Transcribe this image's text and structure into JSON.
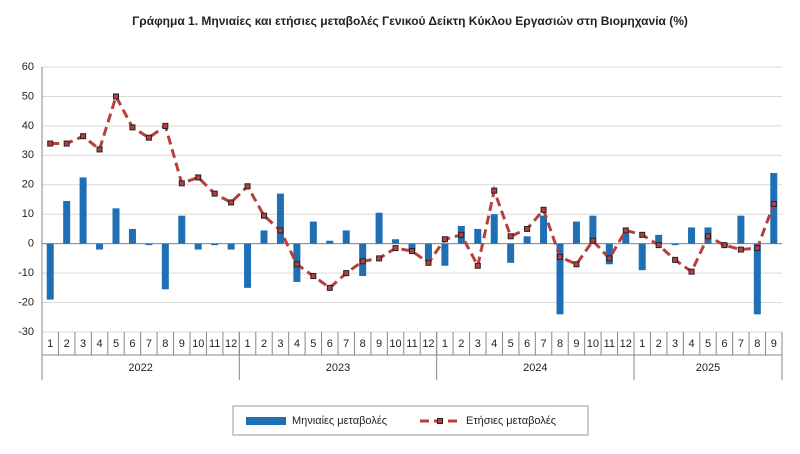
{
  "chart_data": {
    "type": "bar",
    "title": "Γράφημα 1. Μηνιαίες και ετήσιες μεταβολές  Γενικού Δείκτη Κύκλου Εργασιών στη Βιομηχανία (%)",
    "categories": [
      "1",
      "2",
      "3",
      "4",
      "5",
      "6",
      "7",
      "8",
      "9",
      "10",
      "11",
      "12",
      "1",
      "2",
      "3",
      "4",
      "5",
      "6",
      "7",
      "8",
      "9",
      "10",
      "11",
      "12",
      "1",
      "2",
      "3",
      "4",
      "5",
      "6",
      "7",
      "8",
      "9",
      "10",
      "11",
      "12",
      "1",
      "2",
      "3",
      "4",
      "5",
      "6",
      "7",
      "8",
      "9"
    ],
    "year_labels": [
      "2022",
      "2023",
      "2024",
      "2025"
    ],
    "series": [
      {
        "name": "Μηνιαίες μεταβολές",
        "type": "bar",
        "color": "#1f6fb4",
        "values": [
          -19,
          14.5,
          22.5,
          -2,
          12,
          5,
          -0.5,
          -15.5,
          9.5,
          -2,
          -0.5,
          -2,
          -15,
          4.5,
          17,
          -13,
          7.5,
          1,
          4.5,
          -11,
          10.5,
          1.5,
          -2.5,
          -6,
          -7.5,
          6,
          5,
          10,
          -6.5,
          2.5,
          9.5,
          -24,
          7.5,
          9.5,
          -7,
          3.5,
          -9,
          3,
          -0.5,
          5.5,
          5.5,
          -1,
          9.5,
          -24,
          24
        ]
      },
      {
        "name": "Ετήσιες μεταβολές",
        "type": "line",
        "color": "#b5403d",
        "values": [
          34,
          34,
          36.5,
          32,
          50,
          39.5,
          36,
          40,
          20.5,
          22.5,
          17,
          14,
          19.5,
          9.5,
          4.5,
          -7,
          -11,
          -15,
          -10,
          -6,
          -5,
          -1.5,
          -2.5,
          -6.5,
          1.5,
          3,
          -7.5,
          18,
          2.5,
          5,
          11.5,
          -4.5,
          -7,
          1,
          -5,
          4.5,
          3,
          -0.5,
          -5.5,
          -9.5,
          2.5,
          -0.5,
          -2,
          -1.5,
          13.5
        ]
      }
    ],
    "ylim": [
      -30,
      60
    ],
    "yticks": [
      -30,
      -20,
      -10,
      0,
      10,
      20,
      30,
      40,
      50,
      60
    ],
    "grid": true
  }
}
